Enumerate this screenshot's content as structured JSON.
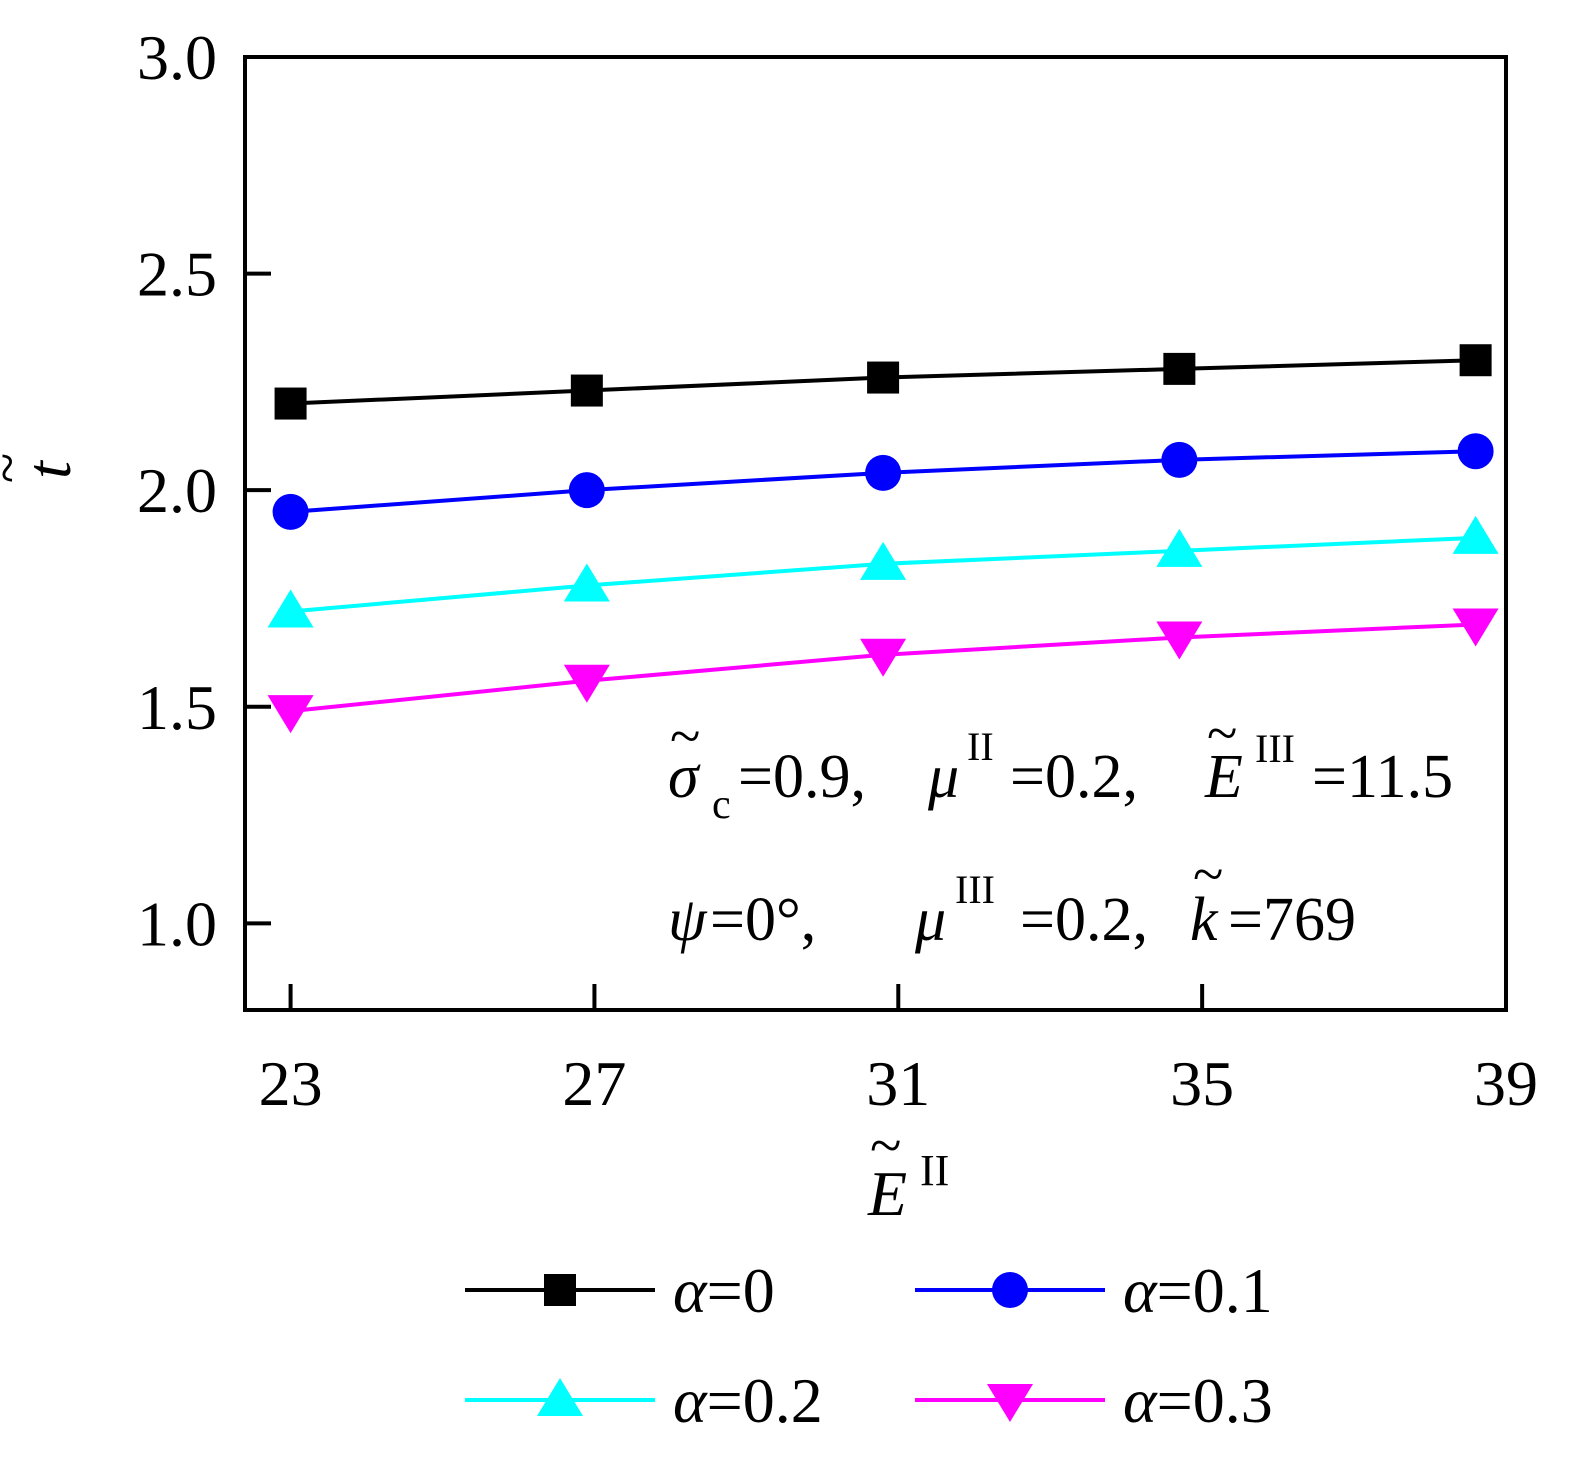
{
  "chart_data": {
    "type": "line",
    "xlabel": {
      "base": "E",
      "sup": "II"
    },
    "ylabel": "t",
    "xlim": [
      22.4,
      39.0
    ],
    "ylim": [
      0.8,
      3.0
    ],
    "xticks": [
      23,
      27,
      31,
      35,
      39
    ],
    "xtick_labels": [
      "23",
      "27",
      "31",
      "35",
      "39"
    ],
    "yticks": [
      1.0,
      1.5,
      2.0,
      2.5,
      3.0
    ],
    "ytick_labels": [
      "1.0",
      "1.5",
      "2.0",
      "2.5",
      "3.0"
    ],
    "x": [
      23.0,
      26.9,
      30.8,
      34.7,
      38.6
    ],
    "series": [
      {
        "name": "α=0",
        "symbol": "α",
        "eq": "=0",
        "color": "#000000",
        "marker": "square",
        "values": [
          2.2,
          2.23,
          2.26,
          2.28,
          2.3
        ]
      },
      {
        "name": "α=0.1",
        "symbol": "α",
        "eq": "=0.1",
        "color": "#0000ff",
        "marker": "circle",
        "values": [
          1.95,
          2.0,
          2.04,
          2.07,
          2.09
        ]
      },
      {
        "name": "α=0.2",
        "symbol": "α",
        "eq": "=0.2",
        "color": "#00ffff",
        "marker": "triangle-up",
        "values": [
          1.72,
          1.78,
          1.83,
          1.86,
          1.89
        ]
      },
      {
        "name": "α=0.3",
        "symbol": "α",
        "eq": "=0.3",
        "color": "#ff00ff",
        "marker": "triangle-down",
        "values": [
          1.49,
          1.56,
          1.62,
          1.66,
          1.69
        ]
      }
    ],
    "annotations": [
      {
        "text": "σ̃c=0.9, μII=0.2, ẼIII=11.5",
        "parts": {
          "sigma": "σ",
          "sigma_sub": "c",
          "eq1": "=0.9, ",
          "mu": "μ",
          "mu_sup": "II",
          "eq2": "=0.2, ",
          "E": "E",
          "E_sup": "III",
          "eq3": "=11.5"
        }
      },
      {
        "text": "ψ=0°, μIII=0.2, k̃=769",
        "parts": {
          "psi": "ψ",
          "eq1": "=0°,   ",
          "mu": "μ",
          "mu_sup": "III",
          "eq2": "=0.2, ",
          "k": "k",
          "eq3": "=769"
        }
      }
    ],
    "grid": false,
    "legend_position": "bottom"
  }
}
